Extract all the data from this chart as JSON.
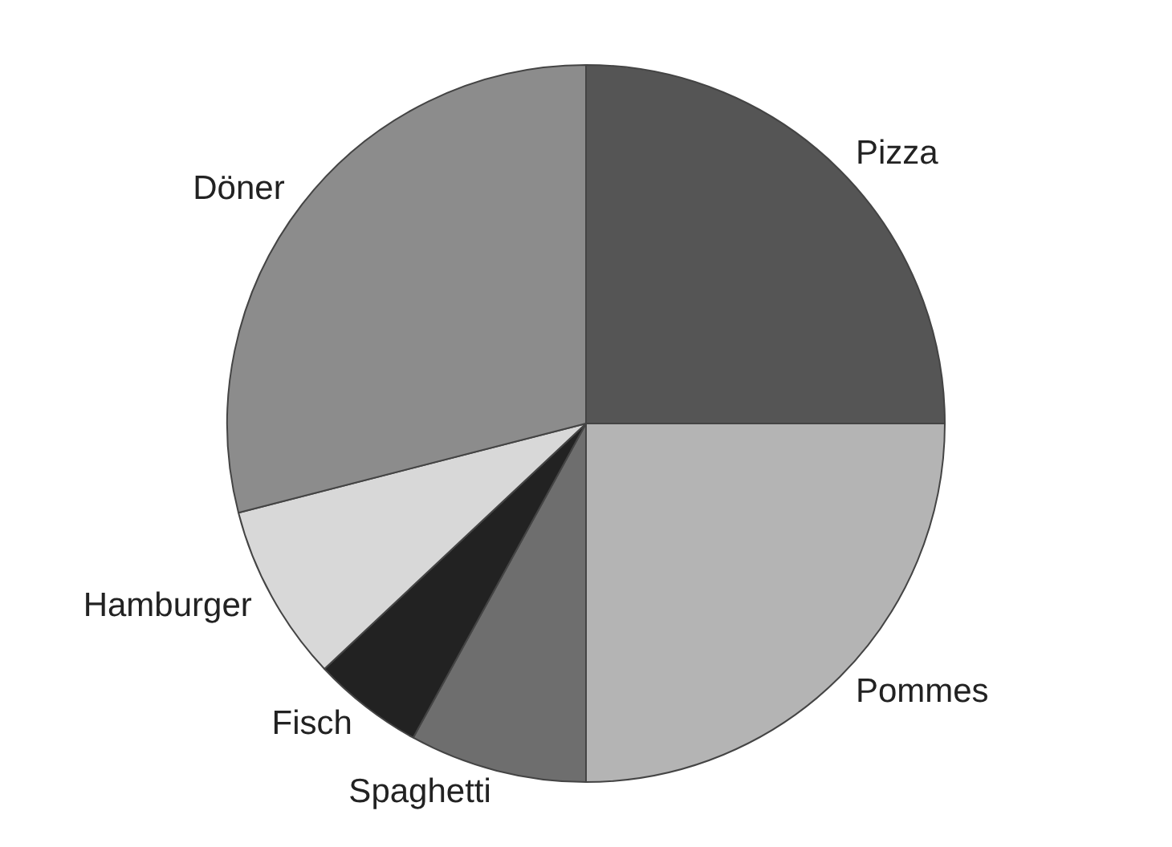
{
  "chart_data": {
    "type": "pie",
    "categories": [
      "Pizza",
      "Pommes",
      "Spaghetti",
      "Fisch",
      "Hamburger",
      "Döner"
    ],
    "values": [
      25,
      25,
      8,
      5,
      8,
      29
    ],
    "colors": [
      "#555555",
      "#b4b4b4",
      "#6e6e6e",
      "#222222",
      "#d8d8d8",
      "#8c8c8c"
    ],
    "legend": false
  }
}
